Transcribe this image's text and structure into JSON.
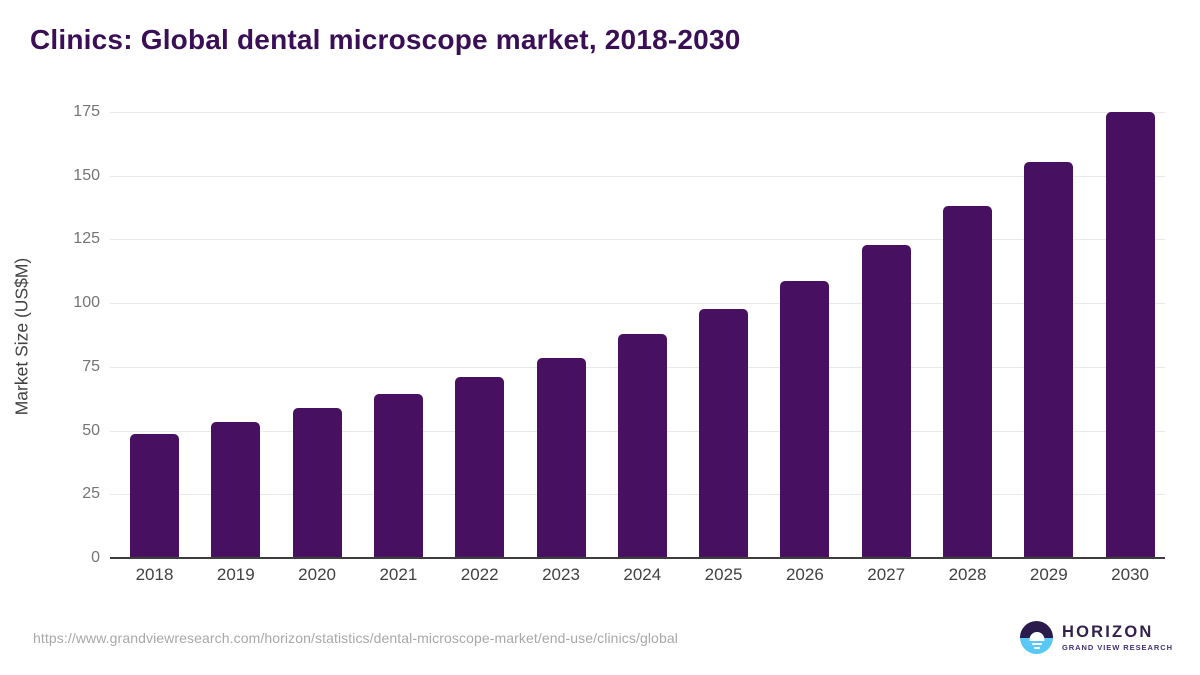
{
  "title": "Clinics: Global dental microscope market, 2018-2030",
  "chart_data": {
    "type": "bar",
    "categories": [
      "2018",
      "2019",
      "2020",
      "2021",
      "2022",
      "2023",
      "2024",
      "2025",
      "2026",
      "2027",
      "2028",
      "2029",
      "2030"
    ],
    "values": [
      48.5,
      53.2,
      59.0,
      64.4,
      71.0,
      78.6,
      88.0,
      97.7,
      108.5,
      122.8,
      138.1,
      155.3,
      175.0
    ],
    "title": "Clinics: Global dental microscope market, 2018-2030",
    "xlabel": "",
    "ylabel": "Market Size (US$M)",
    "ylim": [
      0,
      175
    ],
    "yticks": [
      0,
      25,
      50,
      75,
      100,
      125,
      150,
      175
    ],
    "grid": true,
    "legend": "none",
    "bar_color": "#471061"
  },
  "colors": {
    "title_text": "#3a0f55",
    "bar": "#471061",
    "gridline": "#e9e9e9",
    "axis_line": "#3d3d3d",
    "y_tick_text": "#757575",
    "x_tick_text": "#424242",
    "footer_text": "#a8a8a8",
    "logo_top": "#2b1b4d",
    "logo_bottom": "#5ac8f5",
    "logo_name_text": "#33204e",
    "logo_subtitle_text": "#43307a"
  },
  "footer": {
    "source_url": "https://www.grandviewresearch.com/horizon/statistics/dental-microscope-market/end-use/clinics/global",
    "logo_name": "HORIZON",
    "logo_subtitle": "GRAND VIEW RESEARCH"
  }
}
